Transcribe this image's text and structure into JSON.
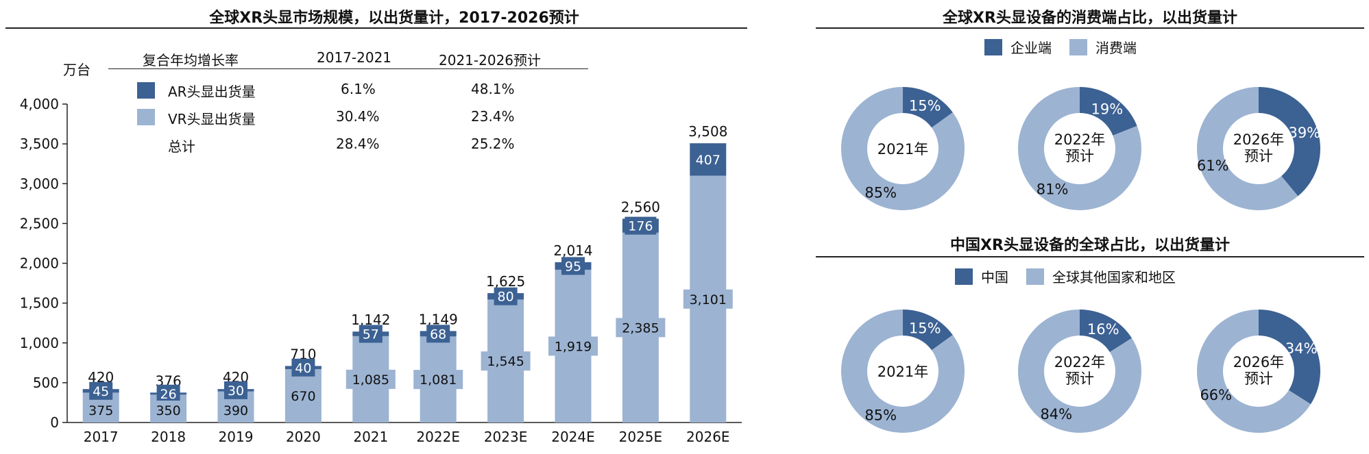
{
  "colors": {
    "dark": "#3c6193",
    "light": "#9cb3d2",
    "axis": "#222222"
  },
  "left": {
    "title": "全球XR头显市场规模，以出货量计，2017-2026预计",
    "unit": "万台",
    "cagr_table": {
      "header": {
        "label": "复合年均增长率",
        "p1": "2017-2021",
        "p2": "2021-2026预计"
      },
      "rows": [
        {
          "label": "AR头显出货量",
          "p1": "6.1%",
          "p2": "48.1%",
          "swatch": "dark"
        },
        {
          "label": "VR头显出货量",
          "p1": "30.4%",
          "p2": "23.4%",
          "swatch": "light"
        },
        {
          "label": "总计",
          "p1": "28.4%",
          "p2": "25.2%",
          "swatch": "none"
        }
      ]
    }
  },
  "right_top": {
    "title": "全球XR头显设备的消费端占比，以出货量计",
    "legend": [
      {
        "label": "企业端",
        "color": "dark"
      },
      {
        "label": "消费端",
        "color": "light"
      }
    ]
  },
  "right_bottom": {
    "title": "中国XR头显设备的全球占比，以出货量计",
    "legend": [
      {
        "label": "中国",
        "color": "dark"
      },
      {
        "label": "全球其他国家和地区",
        "color": "light"
      }
    ]
  },
  "chart_data": [
    {
      "type": "bar",
      "stacked": true,
      "title": "全球XR头显市场规模，以出货量计，2017-2026预计",
      "ylabel": "万台",
      "ylim": [
        0,
        4000
      ],
      "yticks": [
        "0",
        "500",
        "1,000",
        "1,500",
        "2,000",
        "2,500",
        "3,000",
        "3,500",
        "4,000"
      ],
      "categories": [
        "2017",
        "2018",
        "2019",
        "2020",
        "2021",
        "2022E",
        "2023E",
        "2024E",
        "2025E",
        "2026E"
      ],
      "series": [
        {
          "name": "VR头显出货量",
          "values": [
            375,
            350,
            390,
            670,
            1085,
            1081,
            1545,
            1919,
            2385,
            3101
          ],
          "labels": [
            "375",
            "350",
            "390",
            "670",
            "1,085",
            "1,081",
            "1,545",
            "1,919",
            "2,385",
            "3,101"
          ]
        },
        {
          "name": "AR头显出货量",
          "values": [
            45,
            26,
            30,
            40,
            57,
            68,
            80,
            95,
            176,
            407
          ],
          "labels": [
            "45",
            "26",
            "30",
            "40",
            "57",
            "68",
            "80",
            "95",
            "176",
            "407"
          ]
        }
      ],
      "totals": [
        420,
        376,
        420,
        710,
        1142,
        1149,
        1625,
        2014,
        2560,
        3508
      ],
      "total_labels": [
        "420",
        "376",
        "420",
        "710",
        "1,142",
        "1,149",
        "1,625",
        "2,014",
        "2,560",
        "3,508"
      ]
    },
    {
      "type": "pie",
      "donut": true,
      "title": "全球XR头显设备的消费端占比，以出货量计",
      "charts": [
        {
          "center": [
            "2021年"
          ],
          "enterprise": 15,
          "consumer": 85,
          "enterprise_label": "15%",
          "consumer_label": "85%"
        },
        {
          "center": [
            "2022年",
            "预计"
          ],
          "enterprise": 19,
          "consumer": 81,
          "enterprise_label": "19%",
          "consumer_label": "81%"
        },
        {
          "center": [
            "2026年",
            "预计"
          ],
          "enterprise": 39,
          "consumer": 61,
          "enterprise_label": "39%",
          "consumer_label": "61%"
        }
      ]
    },
    {
      "type": "pie",
      "donut": true,
      "title": "中国XR头显设备的全球占比，以出货量计",
      "charts": [
        {
          "center": [
            "2021年"
          ],
          "china": 15,
          "other": 85,
          "china_label": "15%",
          "other_label": "85%"
        },
        {
          "center": [
            "2022年",
            "预计"
          ],
          "china": 16,
          "other": 84,
          "china_label": "16%",
          "other_label": "84%"
        },
        {
          "center": [
            "2026年",
            "预计"
          ],
          "china": 34,
          "other": 66,
          "china_label": "34%",
          "other_label": "66%"
        }
      ]
    }
  ]
}
